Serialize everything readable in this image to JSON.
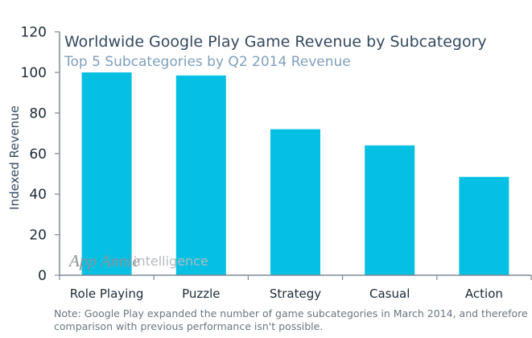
{
  "chart_data": {
    "type": "bar",
    "title": "Worldwide Google Play Game Revenue by Subcategory",
    "subtitle": "Top 5 Subcategories by Q2 2014 Revenue",
    "xlabel": "",
    "ylabel": "Indexed Revenue",
    "categories": [
      "Role Playing",
      "Puzzle",
      "Strategy",
      "Casual",
      "Action"
    ],
    "values": [
      100,
      98.5,
      72,
      64,
      48.5
    ],
    "ylim": [
      0,
      120
    ],
    "yticks": [
      "0",
      "20",
      "40",
      "60",
      "80",
      "100",
      "120"
    ],
    "grid": false,
    "bar_color": "#06c0e4",
    "note": "Note: Google Play expanded the number of game subcategories in March 2014, and therefore comparison with previous performance isn't possible.",
    "note_lines": [
      "Note: Google Play expanded the number of game subcategories in March 2014, and therefore",
      "comparison with previous performance isn't possible."
    ],
    "watermark": {
      "brand": "App Annie",
      "suffix": "intelligence"
    }
  }
}
